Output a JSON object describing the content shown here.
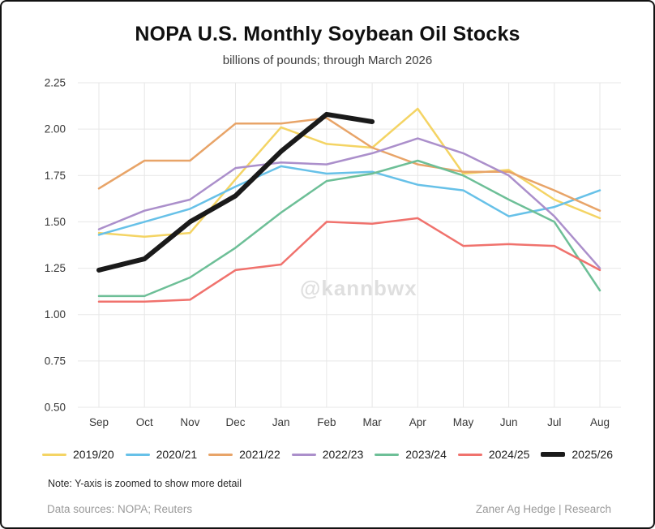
{
  "page": {
    "title": "NOPA U.S. Monthly Soybean Oil Stocks",
    "subtitle": "billions of pounds; through March 2026",
    "watermark": "@kannbwx",
    "note": "Note: Y-axis is zoomed to show more detail",
    "footer_left": "Data sources: NOPA; Reuters",
    "footer_right": "Zaner Ag Hedge | Research"
  },
  "chart_data": {
    "type": "line",
    "title": "NOPA U.S. Monthly Soybean Oil Stocks",
    "subtitle": "billions of pounds; through March 2026",
    "xlabel": "",
    "ylabel": "",
    "categories": [
      "Sep",
      "Oct",
      "Nov",
      "Dec",
      "Jan",
      "Feb",
      "Mar",
      "Apr",
      "May",
      "Jun",
      "Jul",
      "Aug"
    ],
    "ylim": [
      0.5,
      2.25
    ],
    "yticks": [
      0.5,
      0.75,
      1.0,
      1.25,
      1.5,
      1.75,
      2.0,
      2.25
    ],
    "grid": true,
    "legend_position": "bottom",
    "series": [
      {
        "name": "2019/20",
        "color": "#f4d464",
        "width": 2.5,
        "values": [
          1.44,
          1.42,
          1.44,
          1.73,
          2.01,
          1.92,
          1.9,
          2.11,
          1.76,
          1.78,
          1.62,
          1.52
        ]
      },
      {
        "name": "2020/21",
        "color": "#67c1e8",
        "width": 2.5,
        "values": [
          1.43,
          1.5,
          1.57,
          1.69,
          1.8,
          1.76,
          1.77,
          1.7,
          1.67,
          1.53,
          1.58,
          1.67
        ]
      },
      {
        "name": "2021/22",
        "color": "#e8a468",
        "width": 2.5,
        "values": [
          1.68,
          1.83,
          1.83,
          2.03,
          2.03,
          2.06,
          1.9,
          1.81,
          1.77,
          1.77,
          1.67,
          1.56
        ]
      },
      {
        "name": "2022/23",
        "color": "#ab8fcb",
        "width": 2.5,
        "values": [
          1.46,
          1.56,
          1.62,
          1.79,
          1.82,
          1.81,
          1.87,
          1.95,
          1.87,
          1.75,
          1.53,
          1.25
        ]
      },
      {
        "name": "2023/24",
        "color": "#6dbf97",
        "width": 2.5,
        "values": [
          1.1,
          1.1,
          1.2,
          1.36,
          1.55,
          1.72,
          1.76,
          1.83,
          1.75,
          1.62,
          1.5,
          1.13
        ]
      },
      {
        "name": "2024/25",
        "color": "#f0726d",
        "width": 2.5,
        "values": [
          1.07,
          1.07,
          1.08,
          1.24,
          1.27,
          1.5,
          1.49,
          1.52,
          1.37,
          1.38,
          1.37,
          1.24
        ]
      },
      {
        "name": "2025/26",
        "color": "#1a1a1a",
        "width": 6,
        "values": [
          1.24,
          1.3,
          1.5,
          1.64,
          1.88,
          2.08,
          2.04,
          null,
          null,
          null,
          null,
          null
        ]
      }
    ]
  }
}
